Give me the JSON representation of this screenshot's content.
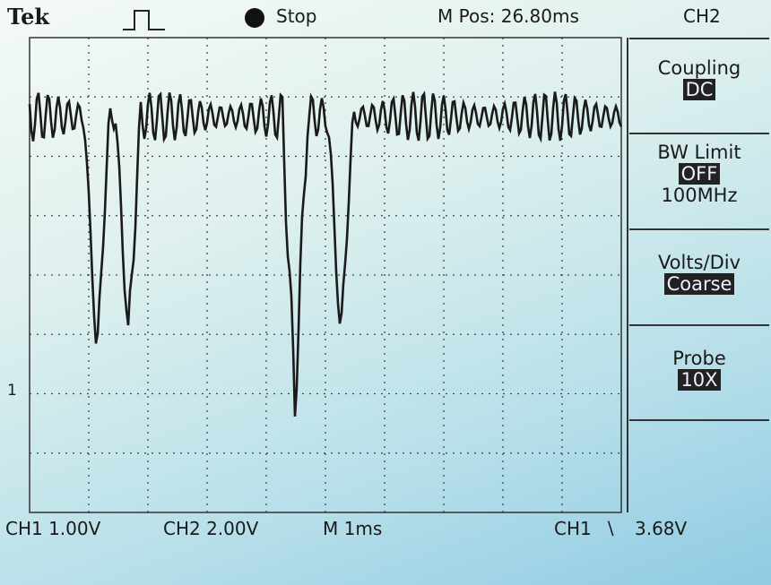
{
  "header": {
    "brand": "Tek",
    "status": "Stop",
    "position": "M Pos: 26.80ms",
    "channel": "CH2"
  },
  "menu": [
    {
      "label": "Coupling",
      "value": "DC"
    },
    {
      "label": "BW Limit",
      "value": "OFF",
      "note": "100MHz"
    },
    {
      "label": "Volts/Div",
      "value": "Coarse"
    },
    {
      "label": "Probe",
      "value": "10X"
    }
  ],
  "marker": "1",
  "footer": {
    "ch1": "CH1 1.00V",
    "ch2": "CH2 2.00V",
    "time": "M 1ms",
    "trigger_source": "CH1",
    "trigger_level": "3.68V"
  }
}
